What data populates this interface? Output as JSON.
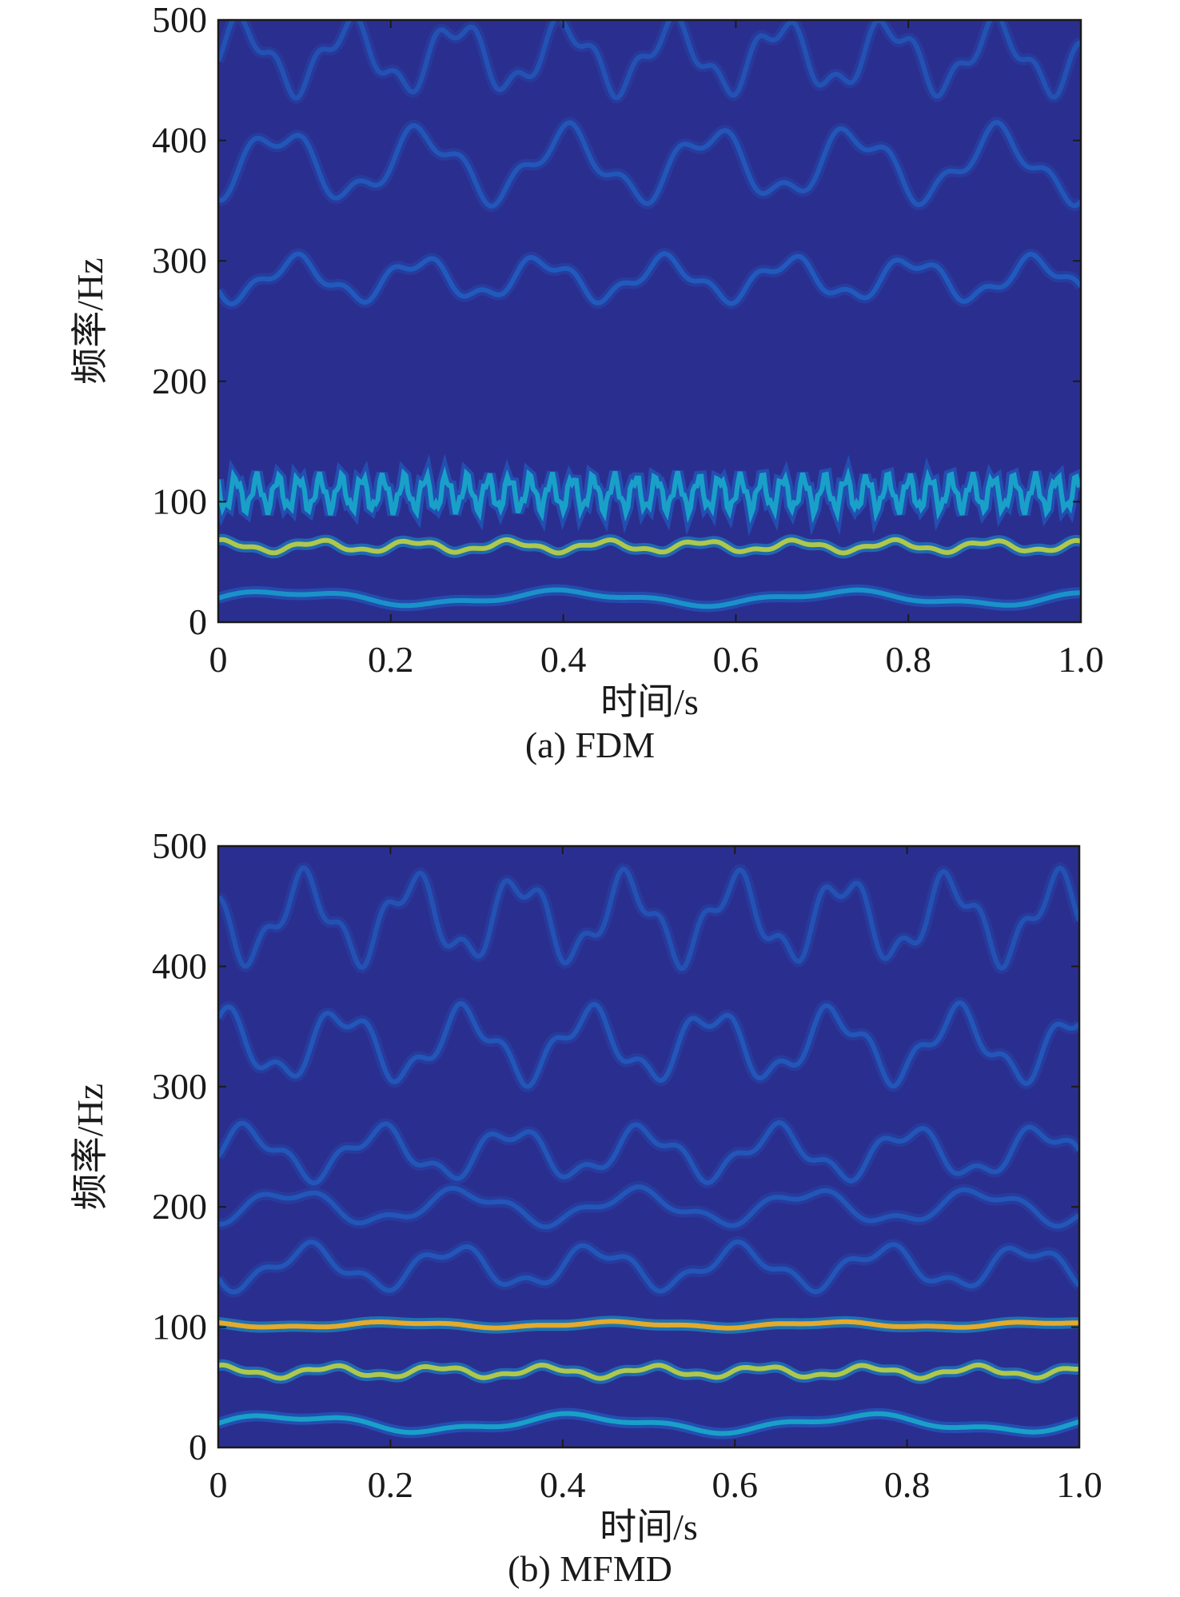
{
  "chart_data": [
    {
      "type": "heatmap",
      "caption": "(a) FDM",
      "xlabel": "时间/s",
      "ylabel": "频率/Hz",
      "xlim": [
        0,
        1.0
      ],
      "ylim": [
        0,
        500
      ],
      "xticks": [
        "0",
        "0.2",
        "0.4",
        "0.6",
        "0.8",
        "1.0"
      ],
      "yticks": [
        "0",
        "100",
        "200",
        "300",
        "400",
        "500"
      ],
      "colormap": "parula",
      "background_color": "#2a2f8f",
      "ridges": [
        {
          "base": 20,
          "amp": 5,
          "freq": 3.1,
          "intensity": 0.45
        },
        {
          "base": 63,
          "amp": 4,
          "freq": 9.0,
          "intensity": 0.8
        },
        {
          "base": 107,
          "amp": 13,
          "freq": 41.0,
          "intensity": 0.5
        },
        {
          "base": 285,
          "amp": 15,
          "freq": 7.0,
          "intensity": 0.22
        },
        {
          "base": 380,
          "amp": 25,
          "freq": 6.0,
          "intensity": 0.2
        },
        {
          "base": 470,
          "amp": 25,
          "freq": 8.0,
          "intensity": 0.18
        }
      ]
    },
    {
      "type": "heatmap",
      "caption": "(b) MFMD",
      "xlabel": "时间/s",
      "ylabel": "频率/Hz",
      "xlim": [
        0,
        1.0
      ],
      "ylim": [
        0,
        500
      ],
      "xticks": [
        "0",
        "0.2",
        "0.4",
        "0.6",
        "0.8",
        "1.0"
      ],
      "yticks": [
        "0",
        "100",
        "200",
        "300",
        "400",
        "500"
      ],
      "colormap": "parula",
      "background_color": "#2a2f8f",
      "ridges": [
        {
          "base": 20,
          "amp": 6,
          "freq": 3.0,
          "intensity": 0.5
        },
        {
          "base": 63,
          "amp": 4,
          "freq": 8.0,
          "intensity": 0.8
        },
        {
          "base": 102,
          "amp": 2,
          "freq": 4.0,
          "intensity": 0.9
        },
        {
          "base": 150,
          "amp": 15,
          "freq": 6.0,
          "intensity": 0.2
        },
        {
          "base": 200,
          "amp": 12,
          "freq": 5.0,
          "intensity": 0.2
        },
        {
          "base": 245,
          "amp": 18,
          "freq": 6.5,
          "intensity": 0.2
        },
        {
          "base": 335,
          "amp": 25,
          "freq": 7.0,
          "intensity": 0.2
        },
        {
          "base": 440,
          "amp": 30,
          "freq": 8.0,
          "intensity": 0.18
        }
      ]
    }
  ]
}
